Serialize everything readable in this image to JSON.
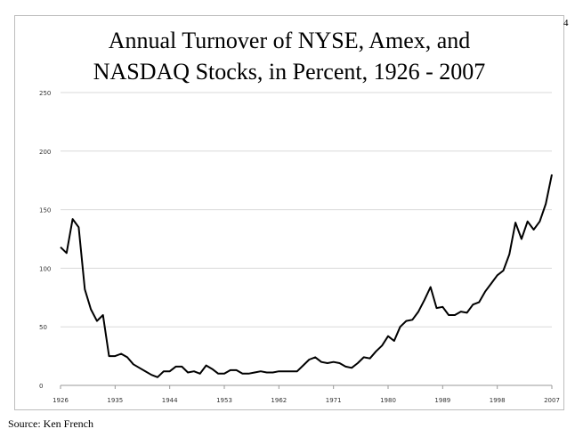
{
  "page_number": "4",
  "source": "Source: Ken French",
  "chart_data": {
    "type": "line",
    "title_lines": [
      "Annual Turnover of NYSE, Amex, and",
      "NASDAQ Stocks, in Percent, 1926 - 2007"
    ],
    "xlabel": "",
    "ylabel": "",
    "xlim": [
      1926,
      2007
    ],
    "ylim": [
      0,
      250
    ],
    "x_ticks": [
      1926,
      1935,
      1944,
      1953,
      1962,
      1971,
      1980,
      1989,
      1998,
      2007
    ],
    "y_ticks": [
      0,
      50,
      100,
      150,
      200,
      250
    ],
    "grid": true,
    "line_color": "#000000",
    "grid_color": "#d9d9d9",
    "series": [
      {
        "x": [
          1926,
          1927,
          1928,
          1929,
          1930,
          1931,
          1932,
          1933,
          1934,
          1935,
          1936,
          1937,
          1938,
          1939,
          1940,
          1941,
          1942,
          1943,
          1944,
          1945,
          1946,
          1947,
          1948,
          1949,
          1950,
          1951,
          1952,
          1953,
          1954,
          1955,
          1956,
          1957,
          1958,
          1959,
          1960,
          1961,
          1962,
          1963,
          1964,
          1965,
          1966,
          1967,
          1968,
          1969,
          1970,
          1971,
          1972,
          1973,
          1974,
          1975,
          1976,
          1977,
          1978,
          1979,
          1980,
          1981,
          1982,
          1983,
          1984,
          1985,
          1986,
          1987,
          1988,
          1989,
          1990,
          1991,
          1992,
          1993,
          1994,
          1995,
          1996,
          1997,
          1998,
          1999,
          2000,
          2001,
          2002,
          2003,
          2004,
          2005,
          2006,
          2007
        ],
        "values": [
          118,
          113,
          142,
          135,
          82,
          65,
          55,
          60,
          25,
          25,
          27,
          24,
          18,
          15,
          12,
          9,
          7,
          12,
          12,
          16,
          16,
          11,
          12,
          10,
          17,
          14,
          10,
          10,
          13,
          13,
          10,
          10,
          11,
          12,
          11,
          11,
          12,
          12,
          12,
          12,
          17,
          22,
          24,
          20,
          19,
          20,
          19,
          16,
          15,
          19,
          24,
          23,
          29,
          34,
          42,
          38,
          50,
          55,
          56,
          63,
          73,
          84,
          66,
          67,
          60,
          60,
          63,
          62,
          69,
          71,
          80,
          87,
          94,
          98,
          112,
          139,
          125,
          140,
          133,
          140,
          155,
          180
        ]
      }
    ]
  }
}
